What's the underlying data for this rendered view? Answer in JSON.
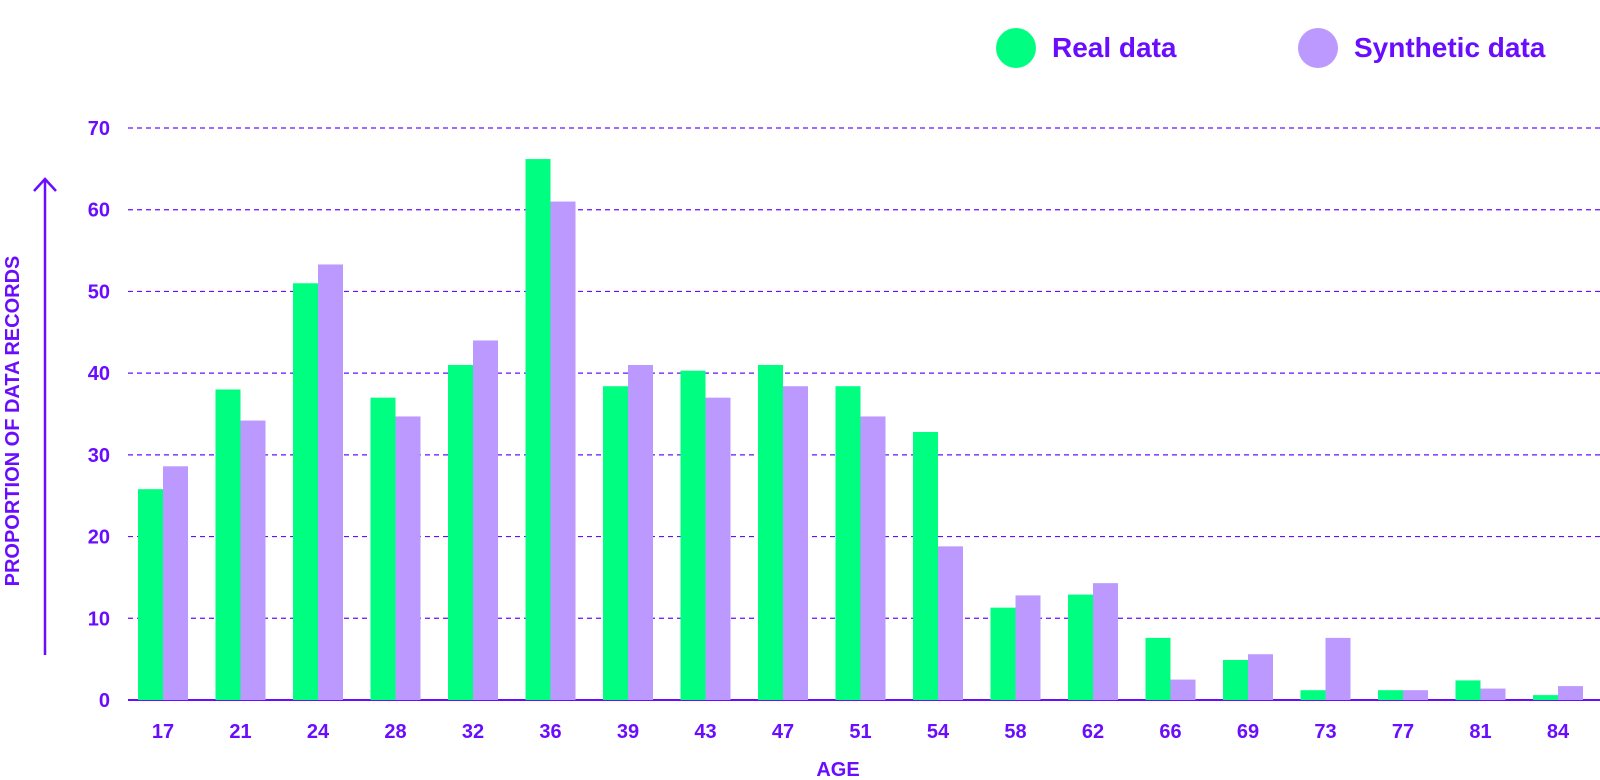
{
  "chart_data": {
    "type": "bar",
    "title": "",
    "xlabel": "AGE",
    "ylabel": "PROPORTION OF DATA RECORDS",
    "ylim": [
      0,
      70
    ],
    "yticks": [
      0,
      10,
      20,
      30,
      40,
      50,
      60,
      70
    ],
    "grid": true,
    "legend_position": "top-right",
    "categories": [
      "17",
      "21",
      "24",
      "28",
      "32",
      "36",
      "39",
      "43",
      "47",
      "51",
      "54",
      "58",
      "62",
      "66",
      "69",
      "73",
      "77",
      "81",
      "84"
    ],
    "series": [
      {
        "name": "Real data",
        "color": "#00FF80",
        "values": [
          25.8,
          38,
          51,
          37,
          41,
          66.2,
          38.4,
          40.3,
          41,
          38.4,
          32.8,
          11.3,
          12.9,
          7.6,
          4.9,
          1.2,
          1.2,
          2.4,
          0.6
        ]
      },
      {
        "name": "Synthetic data",
        "color": "#BB99FF",
        "values": [
          28.6,
          34.2,
          53.3,
          34.7,
          44,
          61,
          41,
          37,
          38.4,
          34.7,
          18.8,
          12.8,
          14.3,
          2.5,
          5.6,
          7.6,
          1.2,
          1.4,
          1.7
        ]
      }
    ],
    "colors": {
      "text": "#6A0DFF",
      "grid": "#6A0DFF",
      "axis_arrow": "#6A0DFF"
    }
  }
}
